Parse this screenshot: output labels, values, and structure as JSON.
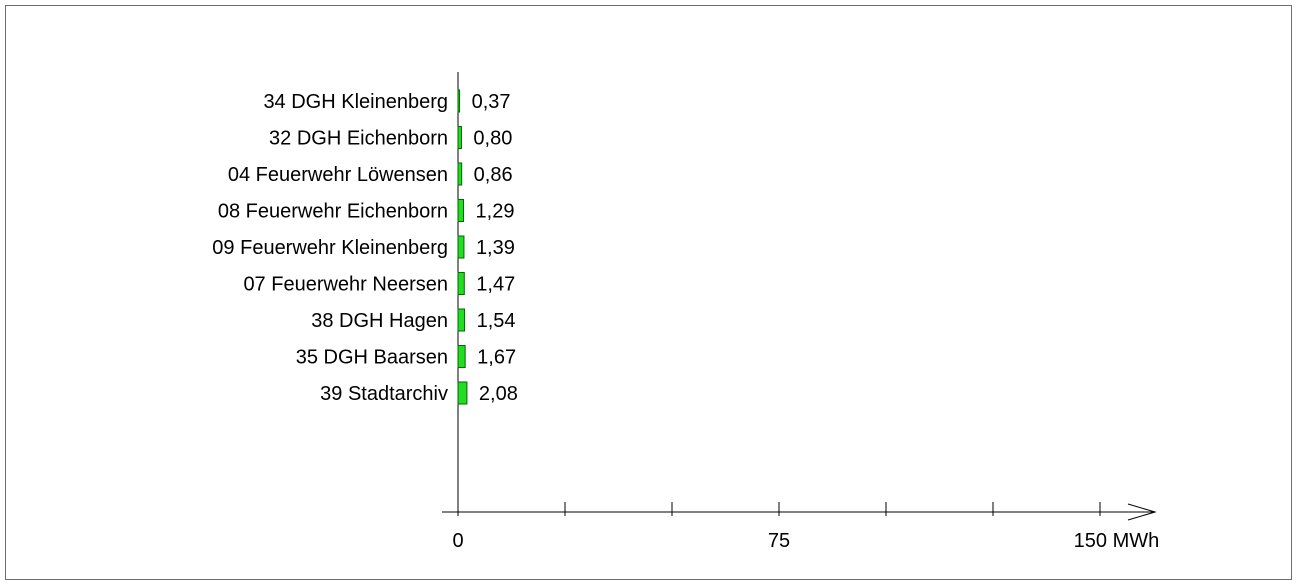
{
  "chart_data": {
    "type": "bar",
    "orientation": "horizontal",
    "categories": [
      "34 DGH Kleinenberg",
      "32 DGH Eichenborn",
      "04 Feuerwehr Löwensen",
      "08 Feuerwehr Eichenborn",
      "09 Feuerwehr Kleinenberg",
      "07 Feuerwehr Neersen",
      "38 DGH Hagen",
      "35 DGH Baarsen",
      "39 Stadtarchiv"
    ],
    "values": [
      0.37,
      0.8,
      0.86,
      1.29,
      1.39,
      1.47,
      1.54,
      1.67,
      2.08
    ],
    "value_labels": [
      "0,37",
      "0,80",
      "0,86",
      "1,29",
      "1,39",
      "1,47",
      "1,54",
      "1,67",
      "2,08"
    ],
    "xlim": [
      0,
      150
    ],
    "x_ticks": [
      {
        "value": 0,
        "label": "0"
      },
      {
        "value": 75,
        "label": "75"
      },
      {
        "value": 150,
        "label": "150 MWh"
      }
    ],
    "minor_tick_interval": 25,
    "bar_color": "#22dd22",
    "grid": false,
    "legend": "none"
  }
}
